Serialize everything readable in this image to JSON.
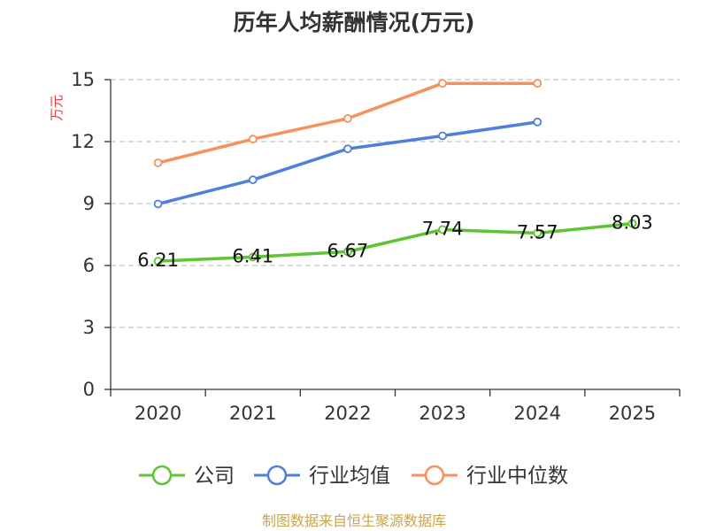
{
  "chart_data": {
    "type": "line",
    "title": "历年人均薪酬情况(万元)",
    "ylabel": "万元",
    "xlabel": "",
    "categories": [
      "2020",
      "2021",
      "2022",
      "2023",
      "2024",
      "2025"
    ],
    "ylim": [
      0,
      15
    ],
    "yticks": [
      0,
      3,
      6,
      9,
      12,
      15
    ],
    "grid": true,
    "legend_position": "bottom",
    "series": [
      {
        "name": "公司",
        "color": "#5cc531",
        "values": [
          6.21,
          6.41,
          6.67,
          7.74,
          7.57,
          8.03
        ],
        "labels": [
          "6.21",
          "6.41",
          "6.67",
          "7.74",
          "7.57",
          "8.03"
        ]
      },
      {
        "name": "行业均值",
        "color": "#4f7fd9",
        "values": [
          8.98,
          10.15,
          11.65,
          12.28,
          12.95,
          null
        ]
      },
      {
        "name": "行业中位数",
        "color": "#f5915a",
        "values": [
          10.97,
          12.12,
          13.12,
          14.82,
          14.82,
          null
        ]
      }
    ]
  },
  "source": "制图数据来自恒生聚源数据库"
}
